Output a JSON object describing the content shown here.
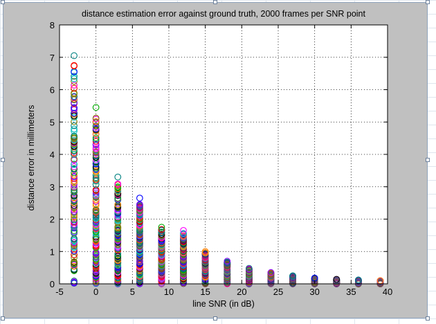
{
  "chart_data": {
    "type": "scatter",
    "title": "distance estimation error against ground truth, 2000 frames per SNR point",
    "xlabel": "line SNR (in dB)",
    "ylabel": "distance error in millimeters",
    "xlim": [
      -5,
      40
    ],
    "ylim": [
      0,
      8
    ],
    "xticks": [
      "-5",
      "0",
      "5",
      "10",
      "15",
      "20",
      "25",
      "30",
      "35",
      "40"
    ],
    "yticks": [
      "0",
      "1",
      "2",
      "3",
      "4",
      "5",
      "6",
      "7",
      "8"
    ],
    "grid": true,
    "marker": "open-circle",
    "marker_colors": [
      "#0000ff",
      "#ff0000",
      "#00aa00",
      "#ff00ff",
      "#00bfbf",
      "#000000",
      "#808000",
      "#ff8000",
      "#8000ff",
      "#008080"
    ],
    "series": [
      {
        "x": -3,
        "max": 7.05,
        "samples": 2000
      },
      {
        "x": 0,
        "max": 5.45,
        "samples": 2000
      },
      {
        "x": 3,
        "max": 3.3,
        "samples": 2000
      },
      {
        "x": 6,
        "max": 2.65,
        "samples": 2000
      },
      {
        "x": 9,
        "max": 1.75,
        "samples": 2000
      },
      {
        "x": 12,
        "max": 1.65,
        "samples": 2000
      },
      {
        "x": 15,
        "max": 1.0,
        "samples": 2000
      },
      {
        "x": 18,
        "max": 0.7,
        "samples": 2000
      },
      {
        "x": 21,
        "max": 0.48,
        "samples": 2000
      },
      {
        "x": 24,
        "max": 0.35,
        "samples": 2000
      },
      {
        "x": 27,
        "max": 0.25,
        "samples": 2000
      },
      {
        "x": 30,
        "max": 0.18,
        "samples": 2000
      },
      {
        "x": 33,
        "max": 0.14,
        "samples": 2000
      },
      {
        "x": 36,
        "max": 0.12,
        "samples": 2000
      },
      {
        "x": 39,
        "max": 0.1,
        "samples": 2000
      }
    ]
  }
}
